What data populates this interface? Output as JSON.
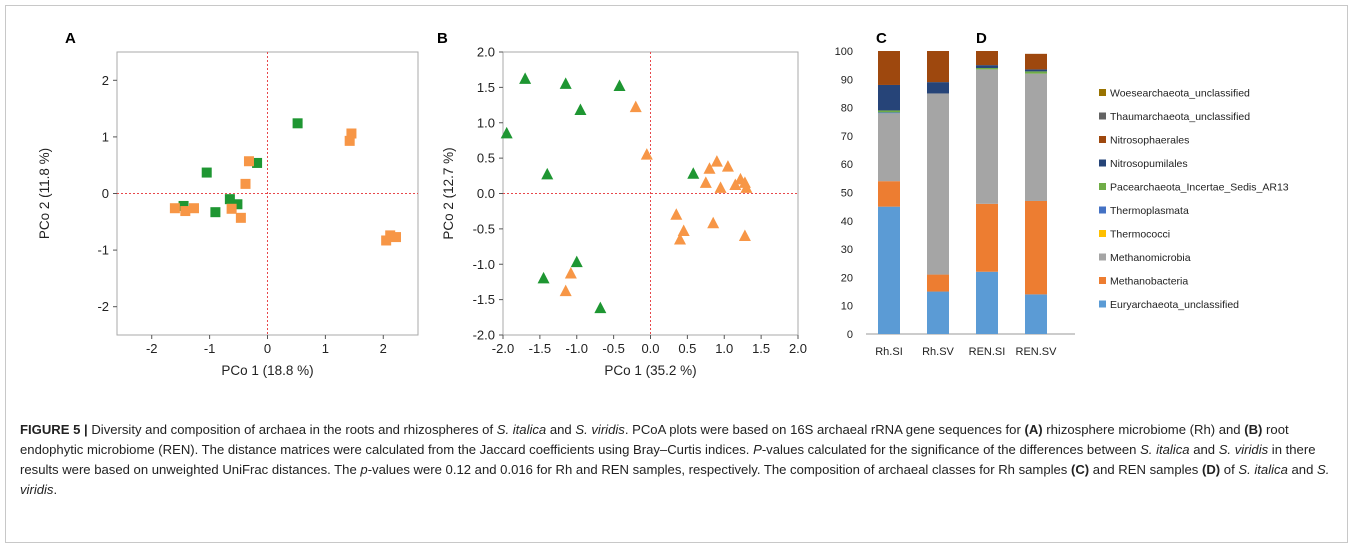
{
  "caption": {
    "label": "FIGURE 5 |",
    "segments": [
      {
        "t": " Diversity and composition of archaea in the roots and rhizospheres of "
      },
      {
        "t": "S. italica",
        "i": true
      },
      {
        "t": " and "
      },
      {
        "t": "S. viridis",
        "i": true
      },
      {
        "t": ". PCoA plots were based on 16S archaeal rRNA gene sequences for "
      },
      {
        "t": "(A)",
        "b": true
      },
      {
        "t": " rhizosphere microbiome (Rh) and "
      },
      {
        "t": "(B)",
        "b": true
      },
      {
        "t": " root endophytic microbiome (REN). The distance matrices were calculated from the Jaccard coefficients using Bray–Curtis indices. "
      },
      {
        "t": "P",
        "i": true
      },
      {
        "t": "-values calculated for the significance of the differences between "
      },
      {
        "t": "S. italica",
        "i": true
      },
      {
        "t": " and "
      },
      {
        "t": "S. viridis",
        "i": true
      },
      {
        "t": " in there results were based on unweighted UniFrac distances. The "
      },
      {
        "t": "p",
        "i": true
      },
      {
        "t": "-values were 0.12 and 0.016 for Rh and REN samples, respectively. The composition of archaeal classes for Rh samples "
      },
      {
        "t": "(C)",
        "b": true
      },
      {
        "t": " and REN samples "
      },
      {
        "t": "(D)",
        "b": true
      },
      {
        "t": " of "
      },
      {
        "t": "S. italica",
        "i": true
      },
      {
        "t": " and "
      },
      {
        "t": "S. viridis",
        "i": true
      },
      {
        "t": "."
      }
    ]
  },
  "colors": {
    "green": "#1e9632",
    "orange": "#f79646",
    "axis": "#aaaaaa",
    "refline": "#e8474a"
  },
  "chart_data": [
    {
      "panel": "A",
      "type": "scatter",
      "xlabel": "PCo 1  (18.8 %)",
      "ylabel": "PCo 2  (11.8 %)",
      "xlim": [
        -2.6,
        2.6
      ],
      "ylim": [
        -2.5,
        2.5
      ],
      "xticks": [
        -2,
        -1,
        0,
        1,
        2
      ],
      "xticklabels": [
        "-2",
        "-1",
        "0",
        "1",
        "2"
      ],
      "yticks": [
        -2,
        -1,
        0,
        1,
        2
      ],
      "yticklabels": [
        "-2",
        "-1",
        "0",
        "1",
        "2"
      ],
      "marker": "square",
      "series": [
        {
          "color": "green",
          "points": [
            [
              -1.45,
              -0.22
            ],
            [
              -1.05,
              0.37
            ],
            [
              -0.9,
              -0.33
            ],
            [
              -0.65,
              -0.1
            ],
            [
              -0.52,
              -0.19
            ],
            [
              -0.18,
              0.54
            ],
            [
              0.52,
              1.24
            ]
          ]
        },
        {
          "color": "orange",
          "points": [
            [
              -1.6,
              -0.26
            ],
            [
              -1.42,
              -0.31
            ],
            [
              -1.27,
              -0.26
            ],
            [
              -0.62,
              -0.27
            ],
            [
              -0.46,
              -0.43
            ],
            [
              -0.38,
              0.17
            ],
            [
              -0.32,
              0.57
            ],
            [
              1.42,
              0.93
            ],
            [
              1.45,
              1.06
            ],
            [
              2.05,
              -0.83
            ],
            [
              2.12,
              -0.74
            ],
            [
              2.22,
              -0.77
            ]
          ]
        }
      ]
    },
    {
      "panel": "B",
      "type": "scatter",
      "xlabel": "PCo 1  (35.2 %)",
      "ylabel": "PCo 2  (12.7 %)",
      "xlim": [
        -2.0,
        2.0
      ],
      "ylim": [
        -2.0,
        2.0
      ],
      "xticks": [
        -2,
        -1.5,
        -1,
        -0.5,
        0,
        0.5,
        1,
        1.5,
        2
      ],
      "xticklabels": [
        "-2.0",
        "-1.5",
        "-1.0",
        "-0.5",
        "0.0",
        "0.5",
        "1.0",
        "1.5",
        "2.0"
      ],
      "yticks": [
        2,
        1.5,
        1,
        0.5,
        0,
        -0.5,
        -1,
        -1.5,
        -2
      ],
      "yticklabels": [
        "2.0",
        "1.5",
        "1.0",
        "0.5",
        "0.0",
        "-0.5",
        "-1.0",
        "-1.5",
        "-2.0"
      ],
      "marker": "triangle",
      "series": [
        {
          "color": "green",
          "points": [
            [
              -1.95,
              0.85
            ],
            [
              -1.7,
              1.62
            ],
            [
              -1.45,
              -1.2
            ],
            [
              -1.4,
              0.27
            ],
            [
              -1.15,
              1.55
            ],
            [
              -1.0,
              -0.97
            ],
            [
              -0.95,
              1.18
            ],
            [
              -0.42,
              1.52
            ],
            [
              -0.68,
              -1.62
            ],
            [
              0.58,
              0.28
            ]
          ]
        },
        {
          "color": "orange",
          "points": [
            [
              -0.2,
              1.22
            ],
            [
              -0.05,
              0.55
            ],
            [
              -1.15,
              -1.38
            ],
            [
              -1.08,
              -1.13
            ],
            [
              0.35,
              -0.3
            ],
            [
              0.4,
              -0.65
            ],
            [
              0.45,
              -0.53
            ],
            [
              0.75,
              0.15
            ],
            [
              0.8,
              0.35
            ],
            [
              0.85,
              -0.42
            ],
            [
              0.9,
              0.45
            ],
            [
              0.95,
              0.08
            ],
            [
              1.05,
              0.38
            ],
            [
              1.15,
              0.12
            ],
            [
              1.22,
              0.2
            ],
            [
              1.28,
              0.15
            ],
            [
              1.3,
              0.08
            ],
            [
              1.28,
              -0.6
            ]
          ]
        }
      ]
    },
    {
      "panel": "C/D",
      "type": "bar",
      "stacked": true,
      "categories": [
        "Rh.SI",
        "Rh.SV",
        "REN.SI",
        "REN.SV"
      ],
      "ylim": [
        0,
        100
      ],
      "yticks": [
        0,
        10,
        20,
        30,
        40,
        50,
        60,
        70,
        80,
        90,
        100
      ],
      "series": [
        {
          "name": "Euryarchaeota_unclassified",
          "color": "#5b9bd5",
          "values": [
            45,
            15,
            22,
            14
          ]
        },
        {
          "name": "Methanobacteria",
          "color": "#ed7d31",
          "values": [
            9,
            6,
            24,
            33
          ]
        },
        {
          "name": "Methanomicrobia",
          "color": "#a5a5a5",
          "values": [
            24,
            64,
            47.5,
            45
          ]
        },
        {
          "name": "Thermococci",
          "color": "#ffc000",
          "values": [
            0,
            0,
            0,
            0
          ]
        },
        {
          "name": "Thermoplasmata",
          "color": "#4472c4",
          "values": [
            0.3,
            0,
            0,
            0
          ]
        },
        {
          "name": "Pacearchaeota_Incertae_Sedis_AR13",
          "color": "#70ad47",
          "values": [
            0.7,
            0,
            0.5,
            0.8
          ]
        },
        {
          "name": "Nitrosopumilales",
          "color": "#264478",
          "values": [
            9,
            4,
            1,
            0.7
          ]
        },
        {
          "name": "Nitrosophaerales",
          "color": "#9e480e",
          "values": [
            12,
            11,
            5,
            5.5
          ]
        },
        {
          "name": "Thaumarchaeota_unclassified",
          "color": "#636363",
          "values": [
            0,
            0,
            0,
            0
          ]
        },
        {
          "name": "Woesearchaeota_unclassified",
          "color": "#997300",
          "values": [
            0,
            0,
            0,
            0
          ]
        }
      ]
    }
  ],
  "labels": {
    "panel_a": "A",
    "panel_b": "B",
    "panel_c": "C",
    "panel_d": "D"
  }
}
